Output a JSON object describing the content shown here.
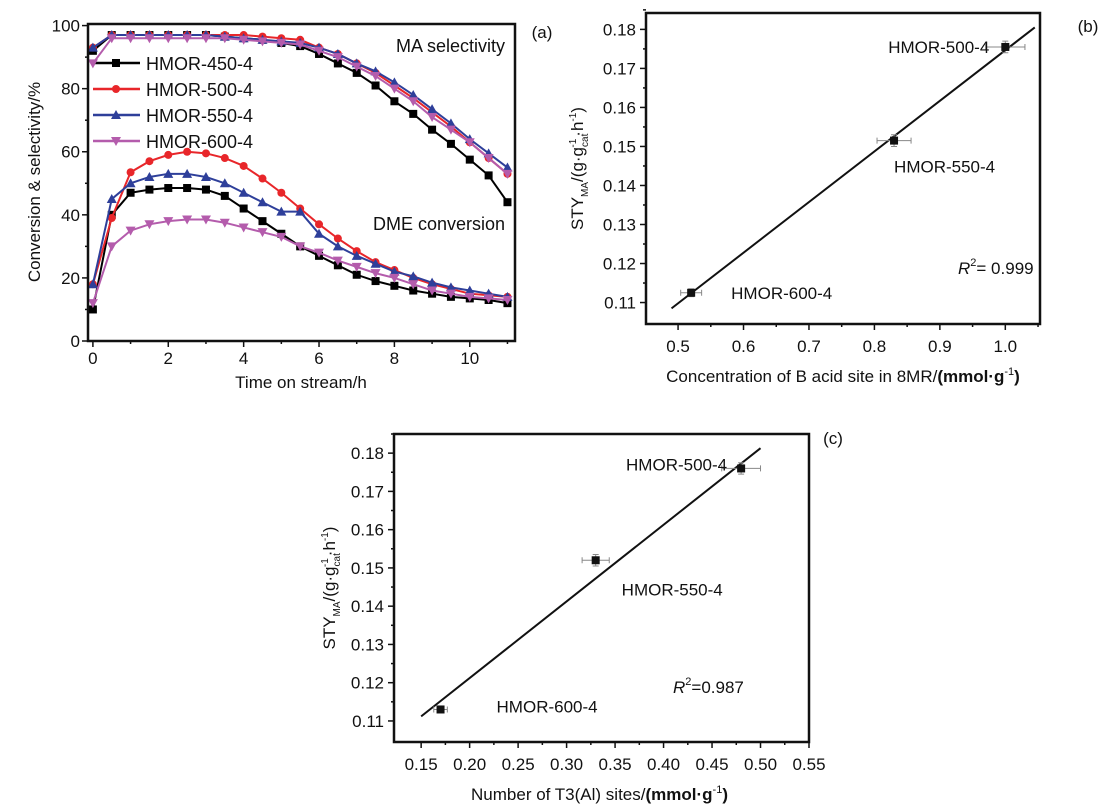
{
  "chart_data": [
    {
      "type": "line",
      "panel_label": "(a)",
      "xlabel": "Time on stream/h",
      "ylabel": "Conversion & selectivity/%",
      "xlim": [
        -0.13,
        11.2
      ],
      "ylim": [
        0,
        100.5
      ],
      "xticks": [
        0,
        2,
        4,
        6,
        8,
        10
      ],
      "yticks": [
        0,
        20,
        40,
        60,
        80,
        100
      ],
      "legend_placement": "top-left",
      "annotations": [
        "MA selectivity",
        "DME conversion"
      ],
      "x": [
        0,
        0.5,
        1,
        1.5,
        2,
        2.5,
        3,
        3.5,
        4,
        4.5,
        5,
        5.5,
        6,
        6.5,
        7,
        7.5,
        8,
        8.5,
        9,
        9.5,
        10,
        10.5,
        11
      ],
      "series": [
        {
          "name": "HMOR-450-4",
          "color": "#000000",
          "marker": "square",
          "selectivity": [
            92,
            97,
            97,
            97,
            97,
            97,
            97,
            96.5,
            96,
            95.5,
            94.5,
            93.5,
            91,
            88,
            85,
            81,
            76,
            72,
            67,
            62.5,
            57.5,
            52.5,
            44
          ],
          "conversion": [
            10,
            40,
            47,
            48,
            48.5,
            48.5,
            48,
            46,
            42,
            38,
            34,
            30,
            27,
            24,
            21,
            19,
            17.5,
            16,
            15,
            14,
            13.5,
            13,
            12
          ]
        },
        {
          "name": "HMOR-500-4",
          "color": "#e8262a",
          "marker": "circle",
          "selectivity": [
            93,
            97,
            97,
            97,
            97,
            97,
            97,
            97,
            97,
            96.5,
            96,
            95.5,
            93,
            91,
            88,
            85,
            81,
            77,
            72.5,
            68,
            63,
            58,
            53
          ],
          "conversion": [
            18,
            39,
            53.5,
            57,
            59,
            60,
            59.5,
            58,
            55.5,
            51.5,
            47,
            42,
            37,
            32.5,
            28.5,
            25,
            22.5,
            20,
            18,
            16.5,
            15,
            14.5,
            14
          ]
        },
        {
          "name": "HMOR-550-4",
          "color": "#2e3f9a",
          "marker": "triangle-up",
          "selectivity": [
            93,
            97,
            97,
            97,
            97,
            97,
            97,
            96.5,
            96,
            95.5,
            95,
            94.5,
            93,
            91,
            88,
            85.5,
            82,
            78,
            73.5,
            69,
            64,
            59.5,
            55
          ],
          "conversion": [
            18,
            45,
            50,
            52,
            53,
            53,
            52,
            50,
            47,
            44,
            41,
            41,
            34,
            30,
            27,
            24.5,
            22,
            20.5,
            18.5,
            17,
            16,
            15,
            14
          ]
        },
        {
          "name": "HMOR-600-4",
          "color": "#b45cac",
          "marker": "triangle-down",
          "selectivity": [
            88,
            96,
            96,
            96,
            96,
            96,
            96,
            96,
            95.5,
            95,
            94.5,
            94,
            92,
            90,
            87,
            84,
            80,
            76,
            71,
            67,
            63,
            58,
            53
          ],
          "conversion": [
            12,
            30,
            35,
            37,
            38,
            38.5,
            38.5,
            37.5,
            36,
            34.5,
            33,
            30,
            28,
            25.5,
            23.5,
            21.5,
            20,
            18,
            16,
            15,
            14,
            13.5,
            13
          ]
        }
      ]
    },
    {
      "type": "scatter",
      "panel_label": "(b)",
      "xlabel_main": "Concentration of B acid site in 8MR/",
      "xlabel_unit": "(mmol·g",
      "xlabel_sup": "-1",
      "xlabel_close": ")",
      "ylabel_parts": [
        "STY",
        "MA",
        "/(g·g",
        "cat",
        "-1",
        "·h",
        "-1",
        ")"
      ],
      "xlim": [
        0.451,
        1.053
      ],
      "ylim": [
        0.1045,
        0.1842
      ],
      "xticks": [
        "0.5",
        "0.6",
        "0.7",
        "0.8",
        "0.9",
        "1.0"
      ],
      "yticks": [
        "0.11",
        "0.12",
        "0.13",
        "0.14",
        "0.15",
        "0.16",
        "0.17",
        "0.18"
      ],
      "r2_label": "R",
      "r2_sup": "2",
      "r2_value": "= 0.999",
      "fit_line": {
        "x": [
          0.49,
          1.045
        ],
        "y": [
          0.1085,
          0.1805
        ]
      },
      "points": [
        {
          "name": "HMOR-500-4",
          "x": 1.0,
          "y": 0.1755,
          "xerr": 0.03,
          "yerr": 0.0015
        },
        {
          "name": "HMOR-550-4",
          "x": 0.83,
          "y": 0.1515,
          "xerr": 0.026,
          "yerr": 0.0015
        },
        {
          "name": "HMOR-600-4",
          "x": 0.52,
          "y": 0.1125,
          "xerr": 0.016,
          "yerr": 0.001
        }
      ]
    },
    {
      "type": "scatter",
      "panel_label": "(c)",
      "xlabel_main": "Number of T3(Al) sites/",
      "xlabel_unit": "(mmol·g",
      "xlabel_sup": "-1",
      "xlabel_close": ")",
      "ylabel_parts": [
        "STY",
        "MA",
        "/(g·g",
        "cat",
        "-1",
        "·h",
        "-1",
        ")"
      ],
      "xlim": [
        0.122,
        0.55
      ],
      "ylim": [
        0.1045,
        0.185
      ],
      "xticks": [
        "0.15",
        "0.20",
        "0.25",
        "0.30",
        "0.35",
        "0.40",
        "0.45",
        "0.50",
        "0.55"
      ],
      "yticks": [
        "0.11",
        "0.12",
        "0.13",
        "0.14",
        "0.15",
        "0.16",
        "0.17",
        "0.18"
      ],
      "r2_label": "R",
      "r2_sup": "2",
      "r2_value": "=0.987",
      "fit_line": {
        "x": [
          0.15,
          0.5
        ],
        "y": [
          0.1112,
          0.1813
        ]
      },
      "points": [
        {
          "name": "HMOR-500-4",
          "x": 0.48,
          "y": 0.176,
          "xerr": 0.02,
          "yerr": 0.0015
        },
        {
          "name": "HMOR-550-4",
          "x": 0.33,
          "y": 0.152,
          "xerr": 0.014,
          "yerr": 0.0015
        },
        {
          "name": "HMOR-600-4",
          "x": 0.17,
          "y": 0.113,
          "xerr": 0.007,
          "yerr": 0.0008
        }
      ]
    }
  ]
}
